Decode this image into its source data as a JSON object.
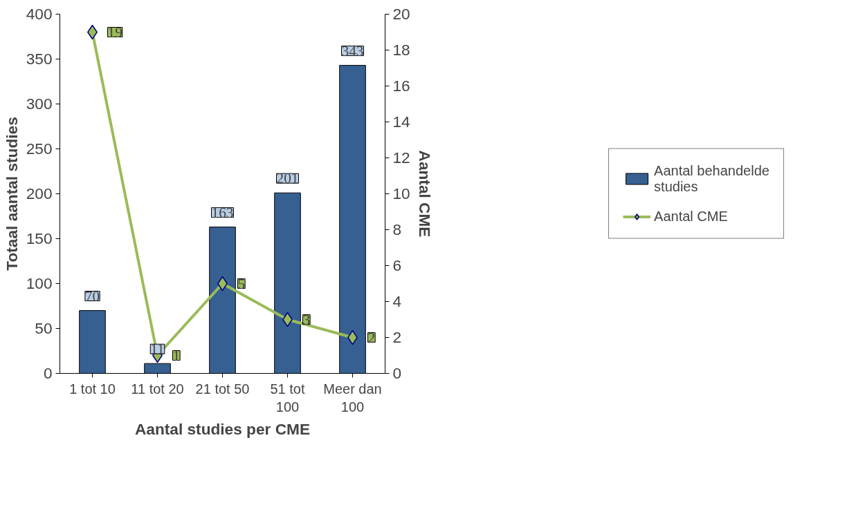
{
  "chart_data": {
    "type": "bar",
    "xlabel": "Aantal studies per CME",
    "ylabel": "Totaal aantal studies",
    "y2label": "Aantal CME",
    "categories": [
      "1 tot 10",
      "11 tot 20",
      "21 tot 50",
      "51 tot 100",
      "Meer dan 100"
    ],
    "series": [
      {
        "name": "Aantal behandelde studies",
        "color": "#376092",
        "values": [
          70,
          11,
          163,
          201,
          343
        ]
      },
      {
        "name": "Aantal CME",
        "type": "line",
        "axis": "y2",
        "color": "#9bbb59",
        "marker": "diamond",
        "values": [
          19,
          1,
          5,
          3,
          2
        ]
      }
    ],
    "ylim": [
      0,
      400
    ],
    "yticks": [
      0,
      50,
      100,
      150,
      200,
      250,
      300,
      350,
      400
    ],
    "y2lim": [
      0,
      20
    ],
    "y2ticks": [
      0,
      2,
      4,
      6,
      8,
      10,
      12,
      14,
      16,
      18,
      20
    ],
    "data_labels": true,
    "grid": false,
    "legend": "right"
  }
}
